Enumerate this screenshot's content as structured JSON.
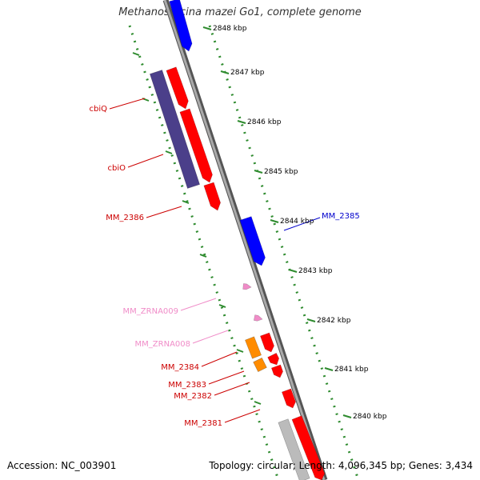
{
  "title": "Methanosarcina mazei Go1, complete genome",
  "footer": {
    "accession": "Accession: NC_003901",
    "summary": "Topology: circular; Length: 4,096,345 bp; Genes: 3,434"
  },
  "colors": {
    "backbone": "#888888",
    "ruler": "#2e8b2e",
    "red_gene": "#ff0000",
    "blue_gene": "#0000ff",
    "purple_gene": "#4b3f8a",
    "orange_gene": "#ff8c00",
    "pink_rna": "#f08cc8",
    "gray_gene": "#bbbbbb"
  },
  "scale_labels": [
    {
      "text": "2848 kbp",
      "bp": 2848000
    },
    {
      "text": "2847 kbp",
      "bp": 2847000
    },
    {
      "text": "2846 kbp",
      "bp": 2846000
    },
    {
      "text": "2845 kbp",
      "bp": 2845000
    },
    {
      "text": "2844 kbp",
      "bp": 2844000
    },
    {
      "text": "2843 kbp",
      "bp": 2843000
    },
    {
      "text": "2842 kbp",
      "bp": 2842000
    },
    {
      "text": "2841 kbp",
      "bp": 2841000
    },
    {
      "text": "2840 kbp",
      "bp": 2840000
    }
  ],
  "gene_labels": [
    {
      "name": "cbiQ",
      "color": "#cc0000"
    },
    {
      "name": "cbiO",
      "color": "#cc0000"
    },
    {
      "name": "MM_2386",
      "color": "#cc0000"
    },
    {
      "name": "MM_2385",
      "color": "#0000cc"
    },
    {
      "name": "MM_ZRNA009",
      "color": "#f08cc8"
    },
    {
      "name": "MM_ZRNA008",
      "color": "#f08cc8"
    },
    {
      "name": "MM_2384",
      "color": "#cc0000"
    },
    {
      "name": "MM_2383",
      "color": "#cc0000"
    },
    {
      "name": "MM_2382",
      "color": "#cc0000"
    },
    {
      "name": "MM_2381",
      "color": "#cc0000"
    }
  ]
}
